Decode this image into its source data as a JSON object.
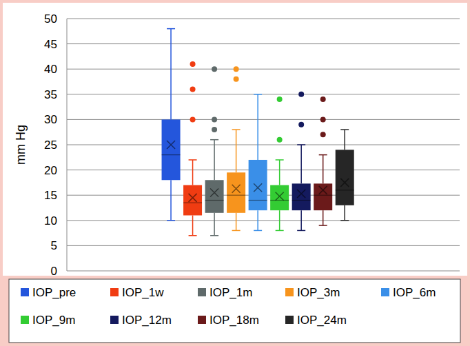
{
  "chart_data": {
    "type": "box",
    "y_label": "mm Hg",
    "ylim": [
      0,
      50
    ],
    "yticks": [
      0,
      5,
      10,
      15,
      20,
      25,
      30,
      35,
      40,
      45,
      50
    ],
    "grid": true,
    "legend": "bottom",
    "tick_labels": "y",
    "series": [
      {
        "name": "IOP_pre",
        "color": "#2456dc",
        "min": 10,
        "q1": 18,
        "median": 23,
        "q3": 30,
        "max": 48,
        "mean": 25,
        "outliers": []
      },
      {
        "name": "IOP_1w",
        "color": "#f03c12",
        "min": 7,
        "q1": 11,
        "median": 13.5,
        "q3": 17,
        "max": 22,
        "mean": 14.5,
        "outliers": [
          30,
          36,
          41
        ]
      },
      {
        "name": "IOP_1m",
        "color": "#5f6a6a",
        "min": 7,
        "q1": 11.5,
        "median": 14,
        "q3": 18,
        "max": 26,
        "mean": 15.5,
        "outliers": [
          28,
          30,
          40
        ]
      },
      {
        "name": "IOP_3m",
        "color": "#f7941d",
        "min": 8,
        "q1": 11.5,
        "median": 15,
        "q3": 19.5,
        "max": 28,
        "mean": 16.3,
        "outliers": [
          38,
          40
        ]
      },
      {
        "name": "IOP_6m",
        "color": "#3a8fe8",
        "min": 8,
        "q1": 12,
        "median": 14,
        "q3": 22,
        "max": 35,
        "mean": 16.5,
        "outliers": []
      },
      {
        "name": "IOP_9m",
        "color": "#33cc33",
        "min": 8,
        "q1": 12,
        "median": 14,
        "q3": 17,
        "max": 22,
        "mean": 14.8,
        "outliers": [
          26,
          34
        ]
      },
      {
        "name": "IOP_12m",
        "color": "#141a5e",
        "min": 8,
        "q1": 12,
        "median": 14,
        "q3": 17.3,
        "max": 25,
        "mean": 15.3,
        "outliers": [
          29,
          35
        ]
      },
      {
        "name": "IOP_18m",
        "color": "#6b1a1a",
        "min": 9,
        "q1": 12,
        "median": 15,
        "q3": 17.3,
        "max": 23,
        "mean": 16,
        "outliers": [
          27,
          30,
          34
        ]
      },
      {
        "name": "IOP_24m",
        "color": "#262626",
        "min": 10,
        "q1": 13,
        "median": 16,
        "q3": 24,
        "max": 28,
        "mean": 17.5,
        "outliers": []
      }
    ]
  }
}
